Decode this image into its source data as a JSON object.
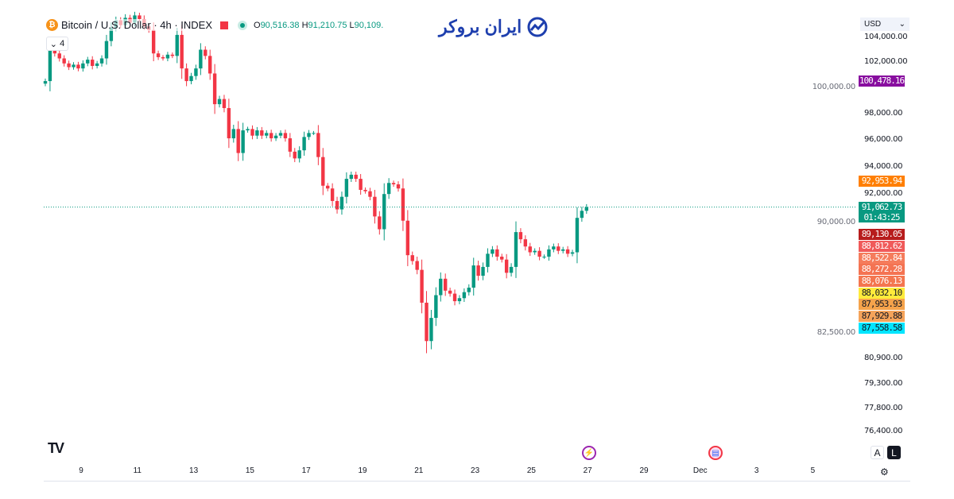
{
  "legend": {
    "symbol": "Bitcoin / U.S. Dollar · 4h · INDEX",
    "open_label": "O",
    "open": "90,516.38",
    "high_label": "H",
    "high": "91,210.75",
    "low_label": "L",
    "low": "90,109.",
    "indicator_count": "4"
  },
  "logo": {
    "text": "ایران بروکر"
  },
  "currency": {
    "value": "USD"
  },
  "scale_buttons": {
    "auto": "A",
    "log": "L"
  },
  "colors": {
    "up": "#089981",
    "down": "#f23645",
    "current_price_line": "#089981"
  },
  "price_tags": [
    {
      "value": "100,478.16",
      "price": 100478.16,
      "bg": "#880e9f",
      "fg": "#ffffff"
    },
    {
      "value": "92,953.94",
      "price": 92953.94,
      "bg": "#ff7f00",
      "fg": "#ffffff"
    },
    {
      "value": "89,130.05",
      "price": 89130.05,
      "bg": "#b71c1c",
      "fg": "#ffffff"
    },
    {
      "value": "88,812.62",
      "price": 88812.62,
      "bg": "#f05a5a",
      "fg": "#ffffff"
    },
    {
      "value": "88,522.84",
      "price": 88522.84,
      "bg": "#f57c5c",
      "fg": "#ffffff"
    },
    {
      "value": "88,272.28",
      "price": 88272.28,
      "bg": "#f47352",
      "fg": "#ffffff"
    },
    {
      "value": "88,076.13",
      "price": 88076.13,
      "bg": "#f4764f",
      "fg": "#ffffff"
    },
    {
      "value": "88,032.10",
      "price": 88032.1,
      "bg": "#ffeb3b",
      "fg": "#131722"
    },
    {
      "value": "87,953.93",
      "price": 87953.93,
      "bg": "#f5a34b",
      "fg": "#131722"
    },
    {
      "value": "87,929.88",
      "price": 87929.88,
      "bg": "#f5a35a",
      "fg": "#131722"
    },
    {
      "value": "87,558.58",
      "price": 87558.58,
      "bg": "#00e5ff",
      "fg": "#131722"
    }
  ],
  "current_price": {
    "value": "91,062.73",
    "price": 91062.73,
    "countdown": "01:43:25"
  },
  "chart_data": {
    "type": "candlestick",
    "interval": "4h",
    "y_scale": "log",
    "ylim": [
      76000,
      104500
    ],
    "y_ticks": [
      {
        "label": "104,000.00",
        "value": 104000
      },
      {
        "label": "102,000.00",
        "value": 102000
      },
      {
        "label": "100,000.00",
        "value": 100000
      },
      {
        "label": "98,000.00",
        "value": 98000
      },
      {
        "label": "96,000.00",
        "value": 96000
      },
      {
        "label": "94,000.00",
        "value": 94000
      },
      {
        "label": "92,000.00",
        "value": 92000
      },
      {
        "label": "90,000.00",
        "value": 90000
      },
      {
        "label": "82,500.00",
        "value": 82500
      },
      {
        "label": "80,900.00",
        "value": 80900
      },
      {
        "label": "79,300.00",
        "value": 79300
      },
      {
        "label": "77,800.00",
        "value": 77800
      },
      {
        "label": "76,400.00",
        "value": 76400
      }
    ],
    "x_ticks": [
      "9",
      "11",
      "13",
      "15",
      "17",
      "19",
      "21",
      "23",
      "25",
      "27",
      "29",
      "Dec",
      "3",
      "5"
    ],
    "first_open": 100300,
    "closes": [
      100500,
      103100,
      102700,
      102300,
      101900,
      101600,
      101800,
      101500,
      101900,
      102200,
      101700,
      101900,
      102300,
      103700,
      104800,
      105400,
      105000,
      105600,
      105200,
      105800,
      105500,
      104900,
      104600,
      102700,
      102400,
      102300,
      102600,
      102500,
      104200,
      101500,
      100500,
      100900,
      101500,
      103000,
      102500,
      101100,
      98700,
      99100,
      98400,
      96100,
      96800,
      95000,
      96700,
      96800,
      96300,
      96700,
      96300,
      96500,
      96100,
      96300,
      96500,
      96100,
      95100,
      94600,
      95200,
      96200,
      96500,
      96500,
      94700,
      92600,
      92400,
      91500,
      90900,
      91800,
      93100,
      93400,
      93100,
      92300,
      92200,
      91800,
      90400,
      89500,
      92000,
      92800,
      92700,
      92400,
      90100,
      87700,
      87300,
      86700,
      84500,
      82000,
      83500,
      85000,
      86100,
      85300,
      85100,
      84600,
      84800,
      85200,
      85500,
      87000,
      86300,
      86900,
      87800,
      88100,
      87600,
      87400,
      86500,
      86900,
      89300,
      88800,
      88300,
      87900,
      88000,
      87600,
      87600,
      88100,
      88300,
      88000,
      88100,
      87800,
      87900,
      90300,
      90800,
      91060
    ]
  }
}
